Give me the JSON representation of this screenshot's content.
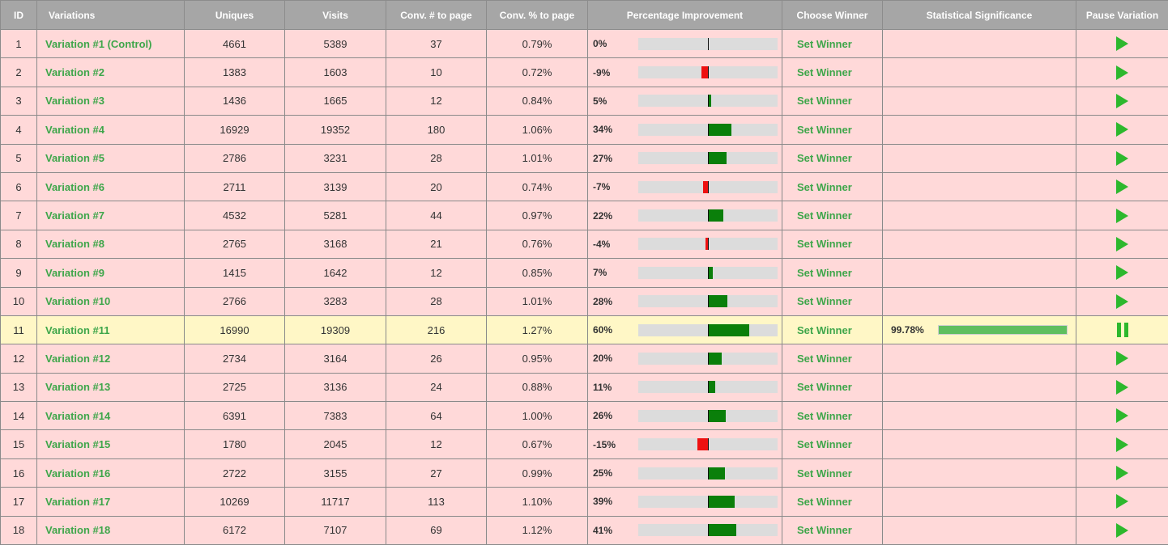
{
  "headers": {
    "id": "ID",
    "variations": "Variations",
    "uniques": "Uniques",
    "visits": "Visits",
    "conv_num": "Conv. # to page",
    "conv_pct": "Conv. % to page",
    "pct_improvement": "Percentage Improvement",
    "choose_winner": "Choose Winner",
    "stat_sig": "Statistical Significance",
    "pause": "Pause Variation"
  },
  "set_winner_label": "Set Winner",
  "colors": {
    "row_bg": "#ffd9d9",
    "winner_row_bg": "#fff7c6",
    "link_green": "#3ea64a",
    "bar_positive": "#0a7f0a",
    "bar_negative": "#ee1111",
    "play_icon": "#2db82d",
    "header_bg": "#a6a6a6"
  },
  "rows": [
    {
      "id": "1",
      "name": "Variation #1 (Control)",
      "uniques": "4661",
      "visits": "5389",
      "conv_num": "37",
      "conv_pct": "0.79%",
      "improvement": "0%",
      "improvement_value": 0,
      "significance": "",
      "significance_value": 0,
      "state": "play"
    },
    {
      "id": "2",
      "name": "Variation #2",
      "uniques": "1383",
      "visits": "1603",
      "conv_num": "10",
      "conv_pct": "0.72%",
      "improvement": "-9%",
      "improvement_value": -9,
      "significance": "",
      "significance_value": 0,
      "state": "play"
    },
    {
      "id": "3",
      "name": "Variation #3",
      "uniques": "1436",
      "visits": "1665",
      "conv_num": "12",
      "conv_pct": "0.84%",
      "improvement": "5%",
      "improvement_value": 5,
      "significance": "",
      "significance_value": 0,
      "state": "play"
    },
    {
      "id": "4",
      "name": "Variation #4",
      "uniques": "16929",
      "visits": "19352",
      "conv_num": "180",
      "conv_pct": "1.06%",
      "improvement": "34%",
      "improvement_value": 34,
      "significance": "",
      "significance_value": 0,
      "state": "play"
    },
    {
      "id": "5",
      "name": "Variation #5",
      "uniques": "2786",
      "visits": "3231",
      "conv_num": "28",
      "conv_pct": "1.01%",
      "improvement": "27%",
      "improvement_value": 27,
      "significance": "",
      "significance_value": 0,
      "state": "play"
    },
    {
      "id": "6",
      "name": "Variation #6",
      "uniques": "2711",
      "visits": "3139",
      "conv_num": "20",
      "conv_pct": "0.74%",
      "improvement": "-7%",
      "improvement_value": -7,
      "significance": "",
      "significance_value": 0,
      "state": "play"
    },
    {
      "id": "7",
      "name": "Variation #7",
      "uniques": "4532",
      "visits": "5281",
      "conv_num": "44",
      "conv_pct": "0.97%",
      "improvement": "22%",
      "improvement_value": 22,
      "significance": "",
      "significance_value": 0,
      "state": "play"
    },
    {
      "id": "8",
      "name": "Variation #8",
      "uniques": "2765",
      "visits": "3168",
      "conv_num": "21",
      "conv_pct": "0.76%",
      "improvement": "-4%",
      "improvement_value": -4,
      "significance": "",
      "significance_value": 0,
      "state": "play"
    },
    {
      "id": "9",
      "name": "Variation #9",
      "uniques": "1415",
      "visits": "1642",
      "conv_num": "12",
      "conv_pct": "0.85%",
      "improvement": "7%",
      "improvement_value": 7,
      "significance": "",
      "significance_value": 0,
      "state": "play"
    },
    {
      "id": "10",
      "name": "Variation #10",
      "uniques": "2766",
      "visits": "3283",
      "conv_num": "28",
      "conv_pct": "1.01%",
      "improvement": "28%",
      "improvement_value": 28,
      "significance": "",
      "significance_value": 0,
      "state": "play"
    },
    {
      "id": "11",
      "name": "Variation #11",
      "uniques": "16990",
      "visits": "19309",
      "conv_num": "216",
      "conv_pct": "1.27%",
      "improvement": "60%",
      "improvement_value": 60,
      "significance": "99.78%",
      "significance_value": 99.78,
      "state": "pause",
      "winner": true
    },
    {
      "id": "12",
      "name": "Variation #12",
      "uniques": "2734",
      "visits": "3164",
      "conv_num": "26",
      "conv_pct": "0.95%",
      "improvement": "20%",
      "improvement_value": 20,
      "significance": "",
      "significance_value": 0,
      "state": "play"
    },
    {
      "id": "13",
      "name": "Variation #13",
      "uniques": "2725",
      "visits": "3136",
      "conv_num": "24",
      "conv_pct": "0.88%",
      "improvement": "11%",
      "improvement_value": 11,
      "significance": "",
      "significance_value": 0,
      "state": "play"
    },
    {
      "id": "14",
      "name": "Variation #14",
      "uniques": "6391",
      "visits": "7383",
      "conv_num": "64",
      "conv_pct": "1.00%",
      "improvement": "26%",
      "improvement_value": 26,
      "significance": "",
      "significance_value": 0,
      "state": "play"
    },
    {
      "id": "15",
      "name": "Variation #15",
      "uniques": "1780",
      "visits": "2045",
      "conv_num": "12",
      "conv_pct": "0.67%",
      "improvement": "-15%",
      "improvement_value": -15,
      "significance": "",
      "significance_value": 0,
      "state": "play"
    },
    {
      "id": "16",
      "name": "Variation #16",
      "uniques": "2722",
      "visits": "3155",
      "conv_num": "27",
      "conv_pct": "0.99%",
      "improvement": "25%",
      "improvement_value": 25,
      "significance": "",
      "significance_value": 0,
      "state": "play"
    },
    {
      "id": "17",
      "name": "Variation #17",
      "uniques": "10269",
      "visits": "11717",
      "conv_num": "113",
      "conv_pct": "1.10%",
      "improvement": "39%",
      "improvement_value": 39,
      "significance": "",
      "significance_value": 0,
      "state": "play"
    },
    {
      "id": "18",
      "name": "Variation #18",
      "uniques": "6172",
      "visits": "7107",
      "conv_num": "69",
      "conv_pct": "1.12%",
      "improvement": "41%",
      "improvement_value": 41,
      "significance": "",
      "significance_value": 0,
      "state": "play"
    }
  ]
}
